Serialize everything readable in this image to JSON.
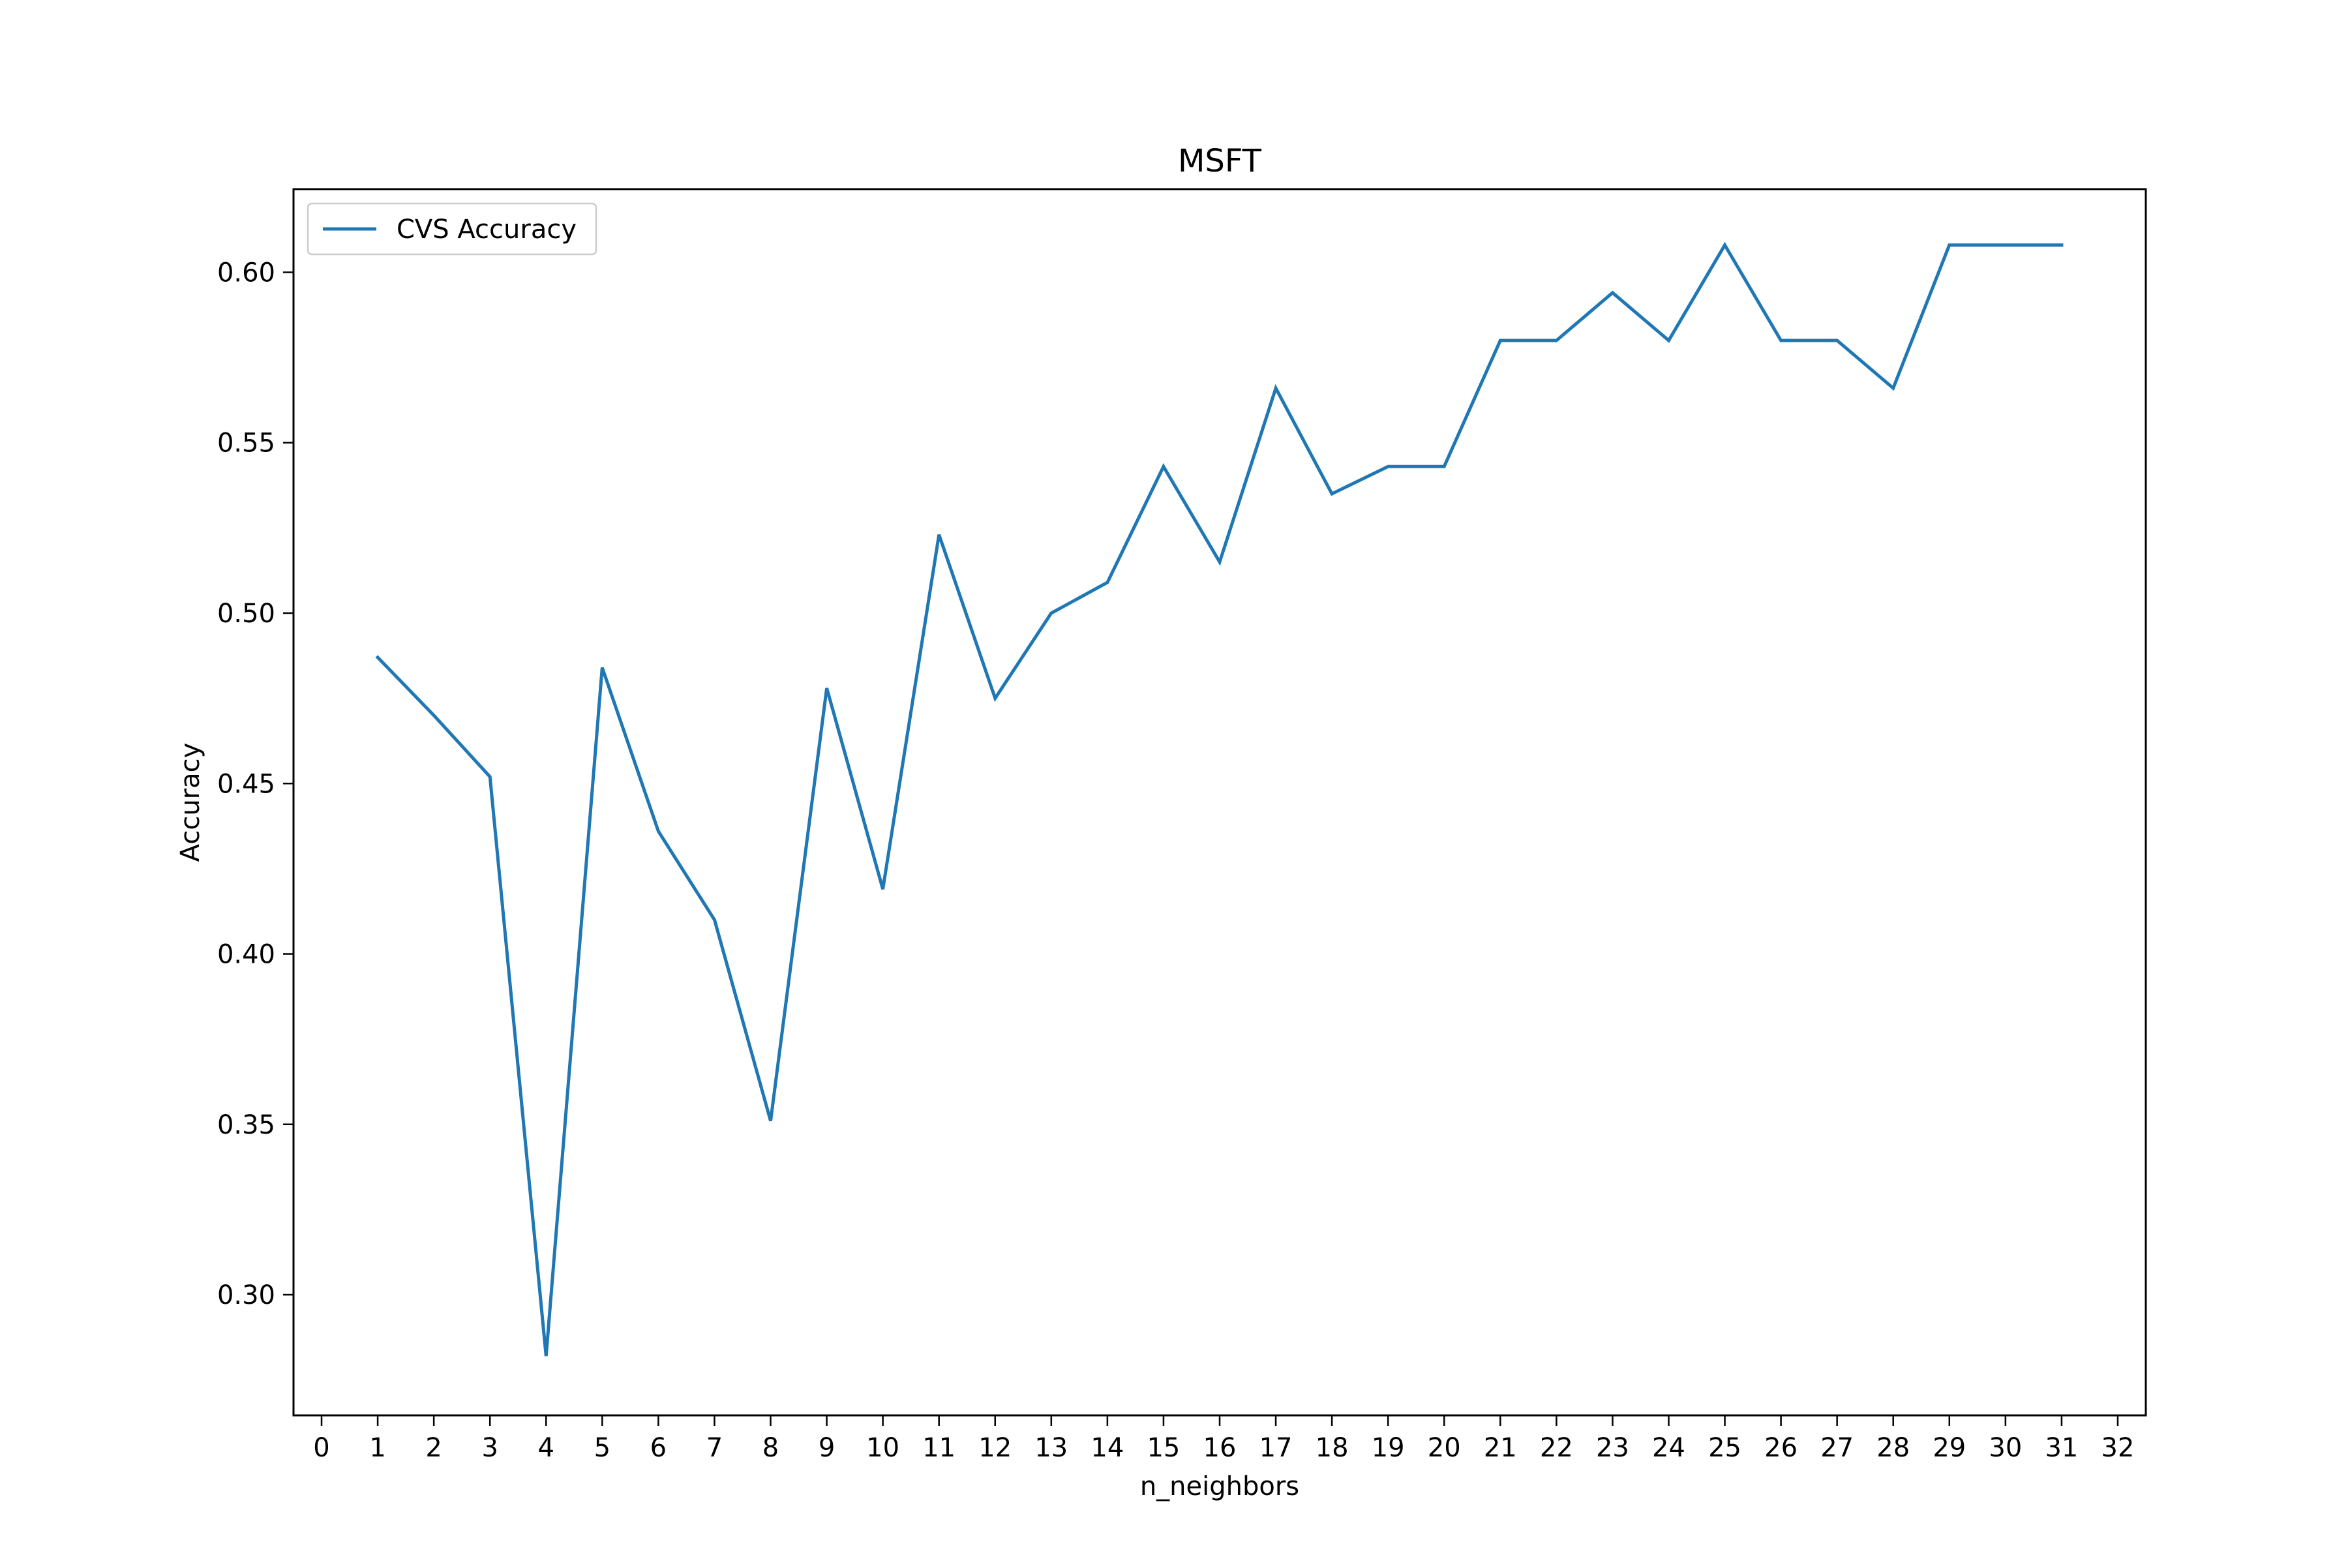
{
  "chart_data": {
    "type": "line",
    "title": "MSFT",
    "xlabel": "n_neighbors",
    "ylabel": "Accuracy",
    "legend": {
      "entries": [
        "CVS Accuracy"
      ],
      "placement": "top-left"
    },
    "grid": false,
    "xlim": [
      -0.5,
      32.5
    ],
    "ylim": [
      0.2646,
      0.6244
    ],
    "x_ticks": [
      0,
      1,
      2,
      3,
      4,
      5,
      6,
      7,
      8,
      9,
      10,
      11,
      12,
      13,
      14,
      15,
      16,
      17,
      18,
      19,
      20,
      21,
      22,
      23,
      24,
      25,
      26,
      27,
      28,
      29,
      30,
      31,
      32
    ],
    "y_ticks": [
      0.3,
      0.35,
      0.4,
      0.45,
      0.5,
      0.55,
      0.6
    ],
    "y_tick_labels": [
      "0.30",
      "0.35",
      "0.40",
      "0.45",
      "0.50",
      "0.55",
      "0.60"
    ],
    "series": [
      {
        "name": "CVS Accuracy",
        "color": "#1f77b4",
        "x": [
          1,
          2,
          3,
          4,
          5,
          6,
          7,
          8,
          9,
          10,
          11,
          12,
          13,
          14,
          15,
          16,
          17,
          18,
          19,
          20,
          21,
          22,
          23,
          24,
          25,
          26,
          27,
          28,
          29,
          30,
          31
        ],
        "values": [
          0.487,
          0.47,
          0.452,
          0.282,
          0.484,
          0.436,
          0.41,
          0.351,
          0.478,
          0.419,
          0.523,
          0.475,
          0.5,
          0.509,
          0.543,
          0.515,
          0.566,
          0.535,
          0.543,
          0.543,
          0.58,
          0.58,
          0.594,
          0.58,
          0.608,
          0.58,
          0.58,
          0.566,
          0.608,
          0.608,
          0.608
        ]
      }
    ]
  }
}
